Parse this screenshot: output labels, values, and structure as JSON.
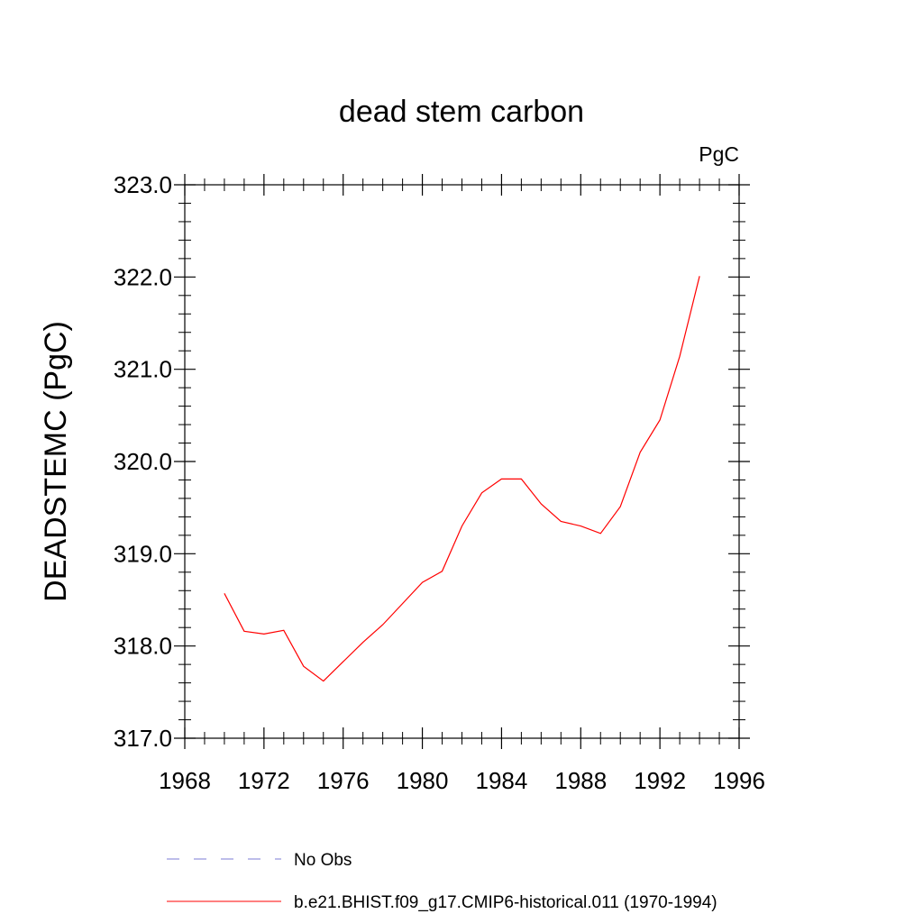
{
  "chart_data": {
    "type": "line",
    "title": "dead stem carbon",
    "units": "PgC",
    "ylabel": "DEADSTEMC  (PgC)",
    "xlabel": "",
    "xlim": [
      1968,
      1996
    ],
    "ylim": [
      317.0,
      323.0
    ],
    "xticks": [
      1968,
      1972,
      1976,
      1980,
      1984,
      1988,
      1992,
      1996
    ],
    "xtick_labels": [
      "1968",
      "1972",
      "1976",
      "1980",
      "1984",
      "1988",
      "1992",
      "1996"
    ],
    "yticks": [
      317,
      318,
      319,
      320,
      321,
      322,
      323
    ],
    "ytick_labels": [
      "317.0",
      "318.0",
      "319.0",
      "320.0",
      "321.0",
      "322.0",
      "323.0"
    ],
    "grid": false,
    "legend_position": "bottom",
    "series": [
      {
        "name": "b.e21.BHIST.f09_g17.CMIP6-historical.011 (1970-1994)",
        "color": "#ff0000",
        "style": "solid",
        "x": [
          1970,
          1971,
          1972,
          1973,
          1974,
          1975,
          1976,
          1977,
          1978,
          1979,
          1980,
          1981,
          1982,
          1983,
          1984,
          1985,
          1986,
          1987,
          1988,
          1989,
          1990,
          1991,
          1992,
          1993,
          1994
        ],
        "y": [
          318.57,
          318.16,
          318.13,
          318.17,
          317.78,
          317.62,
          317.83,
          318.04,
          318.23,
          318.46,
          318.69,
          318.81,
          319.3,
          319.66,
          319.81,
          319.81,
          319.54,
          319.35,
          319.3,
          319.22,
          319.51,
          320.1,
          320.45,
          321.14,
          322.01
        ]
      },
      {
        "name": "No Obs",
        "color": "#7b7bd6",
        "style": "dashed",
        "x": [],
        "y": []
      }
    ]
  }
}
